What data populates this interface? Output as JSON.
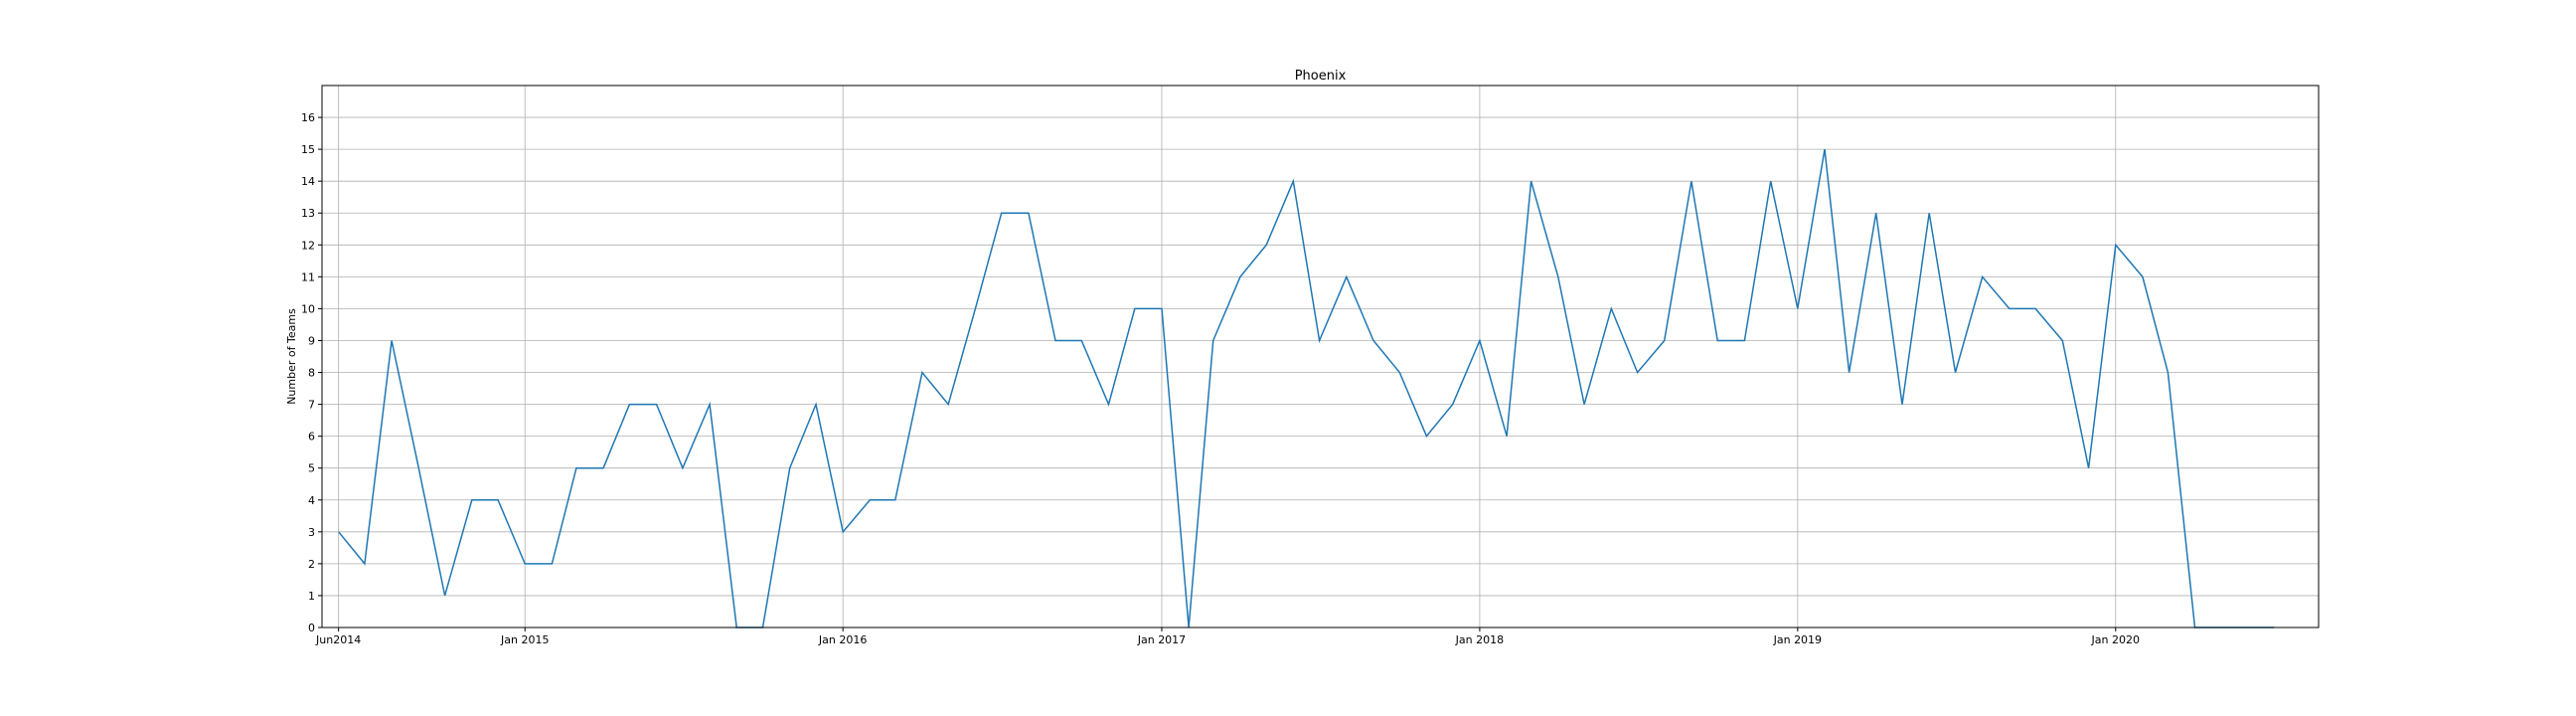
{
  "chart_data": {
    "type": "line",
    "title": "Phoenix",
    "xlabel": "",
    "ylabel": "Number of Teams",
    "ylim": [
      0,
      17
    ],
    "yticks": [
      0,
      1,
      2,
      3,
      4,
      5,
      6,
      7,
      8,
      9,
      10,
      11,
      12,
      13,
      14,
      15,
      16
    ],
    "xlim": [
      "2014-05-13",
      "2020-08-21"
    ],
    "xticks": [
      {
        "date": "2014-06-01",
        "label": "Jun2014"
      },
      {
        "date": "2015-01-01",
        "label": "Jan 2015"
      },
      {
        "date": "2016-01-01",
        "label": "Jan 2016"
      },
      {
        "date": "2017-01-01",
        "label": "Jan 2017"
      },
      {
        "date": "2018-01-01",
        "label": "Jan 2018"
      },
      {
        "date": "2019-01-01",
        "label": "Jan 2019"
      },
      {
        "date": "2020-01-01",
        "label": "Jan 2020"
      }
    ],
    "grid": true,
    "series_color": "#1f77b4",
    "x": [
      "2014-06-01",
      "2014-07-01",
      "2014-08-01",
      "2014-09-01",
      "2014-10-01",
      "2014-11-01",
      "2014-12-01",
      "2015-01-01",
      "2015-02-01",
      "2015-03-01",
      "2015-04-01",
      "2015-05-01",
      "2015-06-01",
      "2015-07-01",
      "2015-08-01",
      "2015-09-01",
      "2015-10-01",
      "2015-11-01",
      "2015-12-01",
      "2016-01-01",
      "2016-02-01",
      "2016-03-01",
      "2016-04-01",
      "2016-05-01",
      "2016-06-01",
      "2016-07-01",
      "2016-08-01",
      "2016-09-01",
      "2016-10-01",
      "2016-11-01",
      "2016-12-01",
      "2017-01-01",
      "2017-02-01",
      "2017-03-01",
      "2017-04-01",
      "2017-05-01",
      "2017-06-01",
      "2017-07-01",
      "2017-08-01",
      "2017-09-01",
      "2017-10-01",
      "2017-11-01",
      "2017-12-01",
      "2018-01-01",
      "2018-02-01",
      "2018-03-01",
      "2018-04-01",
      "2018-05-01",
      "2018-06-01",
      "2018-07-01",
      "2018-08-01",
      "2018-09-01",
      "2018-10-01",
      "2018-11-01",
      "2018-12-01",
      "2019-01-01",
      "2019-02-01",
      "2019-03-01",
      "2019-04-01",
      "2019-05-01",
      "2019-06-01",
      "2019-07-01",
      "2019-08-01",
      "2019-09-01",
      "2019-10-01",
      "2019-11-01",
      "2019-12-01",
      "2020-01-01",
      "2020-02-01",
      "2020-03-01",
      "2020-04-01",
      "2020-05-01",
      "2020-06-01",
      "2020-07-01"
    ],
    "y": [
      3,
      2,
      9,
      5,
      1,
      4,
      4,
      2,
      2,
      5,
      5,
      7,
      7,
      5,
      7,
      0,
      0,
      5,
      7,
      3,
      4,
      4,
      8,
      7,
      10,
      13,
      13,
      9,
      9,
      7,
      10,
      10,
      0,
      9,
      11,
      12,
      14,
      9,
      11,
      9,
      8,
      6,
      7,
      9,
      6,
      14,
      11,
      7,
      10,
      8,
      9,
      14,
      9,
      9,
      14,
      10,
      15,
      8,
      13,
      7,
      13,
      8,
      11,
      10,
      10,
      9,
      5,
      12,
      11,
      8,
      0,
      0,
      0,
      0
    ]
  }
}
